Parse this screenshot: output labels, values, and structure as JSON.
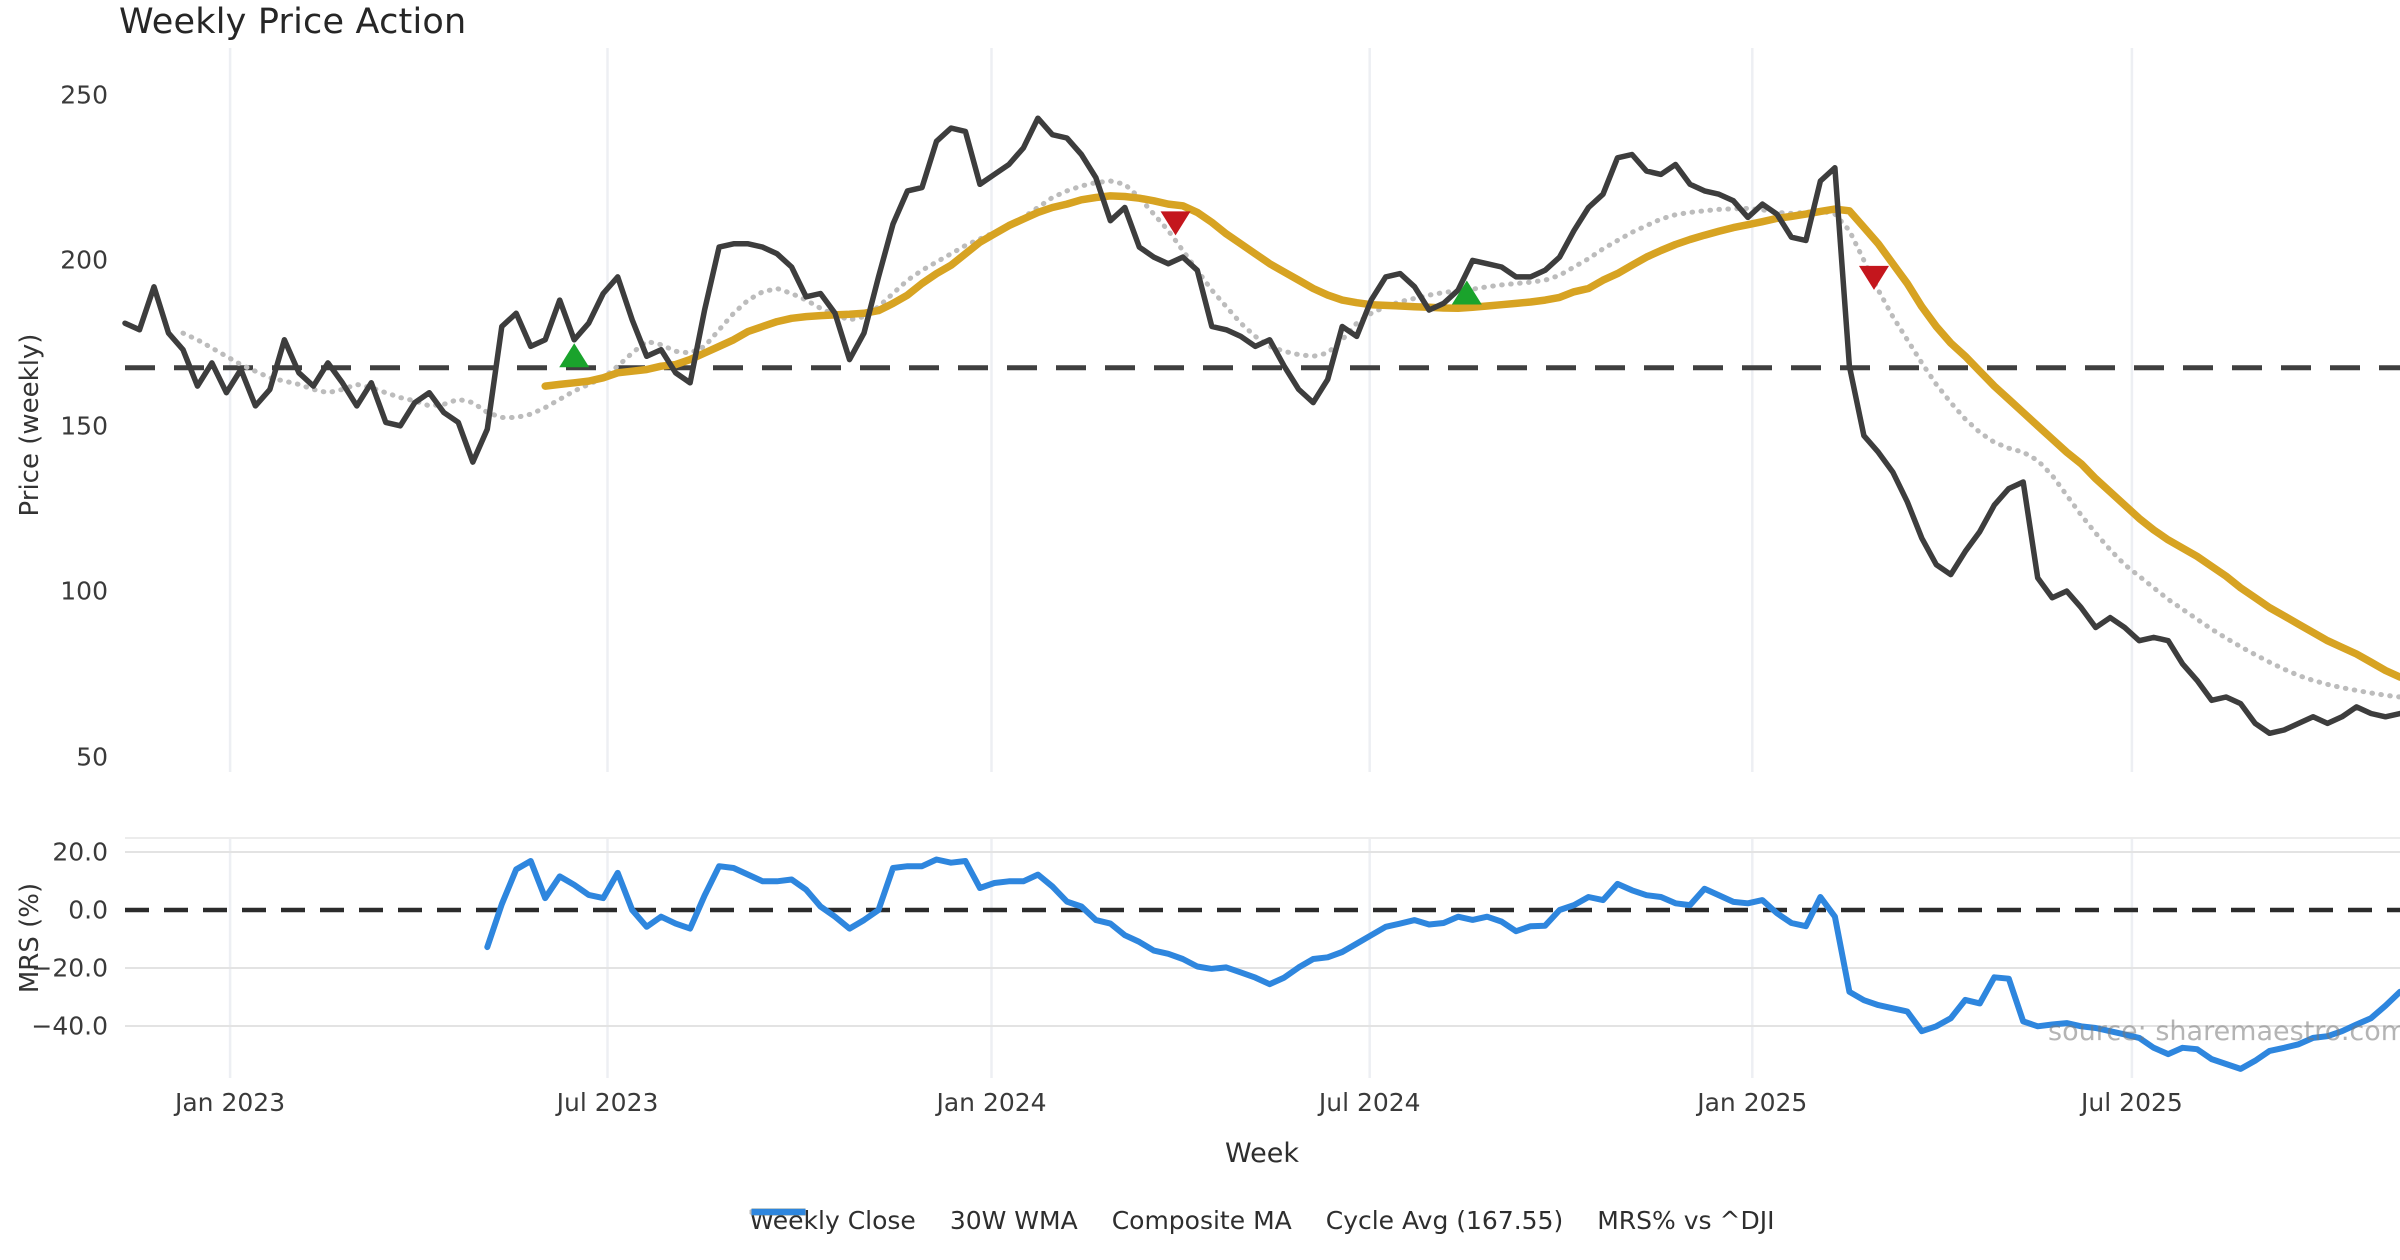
{
  "title": "Weekly Price Action",
  "xlabel": "Week",
  "watermark": "source: sharemaestro.com",
  "colors": {
    "weekly_close": "#3d3d3d",
    "wma_30w": "#d7a322",
    "composite_ma": "#bcbcbc",
    "cycle_avg": "#3f3f3f",
    "mrs": "#2e86de",
    "buy_marker": "#1aa32c",
    "sell_marker": "#c4161d",
    "gridline_vertical": "#edeff3",
    "gridline_horizontal": "#e3e3e3",
    "background": "#ffffff"
  },
  "legend": [
    {
      "label": "Weekly Close",
      "style": "solid",
      "color": "#3d3d3d"
    },
    {
      "label": "30W WMA",
      "style": "solid",
      "color": "#d7a322"
    },
    {
      "label": "Composite MA",
      "style": "dotted",
      "color": "#bcbcbc"
    },
    {
      "label": "Cycle Avg (167.55)",
      "style": "dashed",
      "color": "#3f3f3f"
    },
    {
      "label": "MRS% vs ^DJI",
      "style": "solid",
      "color": "#2e86de"
    }
  ],
  "chart_data": [
    {
      "type": "line",
      "panel": "price",
      "title": "Weekly Price Action",
      "ylabel": "Price (weekly)",
      "yticks": [
        "250",
        "200",
        "150",
        "100",
        "50"
      ],
      "ytick_values": [
        250,
        200,
        150,
        100,
        50
      ],
      "ylim": [
        46,
        264
      ],
      "x_unit": "weekly index, mid-Nov 2022 = week 0",
      "xticks": [
        {
          "label": "Jan 2023",
          "week": 7.25
        },
        {
          "label": "Jul 2023",
          "week": 33.3
        },
        {
          "label": "Jan 2024",
          "week": 59.8
        },
        {
          "label": "Jul 2024",
          "week": 85.9
        },
        {
          "label": "Jan 2025",
          "week": 112.3
        },
        {
          "label": "Jul 2025",
          "week": 138.5
        }
      ],
      "grid": "vertical-only",
      "series": [
        {
          "name": "Weekly Close",
          "style": "solid",
          "color": "#3d3d3d",
          "start_week": 0,
          "values": [
            181,
            179,
            192,
            178,
            173,
            162,
            169,
            160,
            167,
            156,
            161,
            176,
            166,
            162,
            169,
            163,
            156,
            163,
            151,
            150,
            157,
            160,
            154,
            151,
            139,
            149,
            180,
            184,
            174,
            176,
            188,
            176,
            181,
            190,
            195,
            182,
            171,
            173,
            166,
            163,
            185,
            204,
            205,
            205,
            204,
            202,
            198,
            189,
            190,
            184,
            170,
            178,
            195,
            211,
            221,
            222,
            236,
            240,
            239,
            223,
            226,
            229,
            234,
            243,
            238,
            237,
            232,
            225,
            212,
            216,
            204,
            201,
            199,
            201,
            197,
            180,
            179,
            177,
            174,
            176,
            168,
            161,
            157,
            164,
            180,
            177,
            188,
            195,
            196,
            192,
            185,
            187,
            191,
            200,
            199,
            198,
            195,
            195,
            197,
            201,
            209,
            216,
            220,
            231,
            232,
            227,
            226,
            229,
            223,
            221,
            220,
            218,
            213,
            217,
            214,
            207,
            206,
            224,
            228,
            168,
            147,
            142,
            136,
            127,
            116,
            108,
            105,
            112,
            118,
            126,
            131,
            133,
            104,
            98,
            100,
            95,
            89,
            92,
            89,
            85,
            86,
            85,
            78,
            73,
            67,
            68,
            66,
            60,
            57,
            58,
            60,
            62,
            60,
            62,
            65,
            63,
            62,
            63
          ]
        },
        {
          "name": "30W WMA",
          "style": "solid",
          "color": "#d7a322",
          "start_week": 29,
          "values": [
            162,
            162.5,
            163,
            163.5,
            164.5,
            166,
            166.5,
            167,
            168,
            168.5,
            170,
            172,
            174,
            176,
            178.5,
            180,
            181.5,
            182.5,
            183,
            183.3,
            183.5,
            183.7,
            184,
            184.8,
            187,
            189.5,
            193,
            196,
            198.5,
            202,
            205.5,
            208,
            210.5,
            212.5,
            214.5,
            216,
            217,
            218.3,
            219,
            219.5,
            219.3,
            218.8,
            218,
            217,
            216.5,
            214.5,
            211.5,
            208,
            205,
            202,
            199,
            196.5,
            194,
            191.5,
            189.5,
            188,
            187.2,
            186.6,
            186.4,
            186.2,
            186,
            185.8,
            185.6,
            185.5,
            185.8,
            186.2,
            186.6,
            187,
            187.4,
            188,
            188.8,
            190.5,
            191.5,
            194,
            196,
            198.5,
            201,
            203,
            204.8,
            206.3,
            207.6,
            208.8,
            209.9,
            210.8,
            211.7,
            212.7,
            213.3,
            214,
            214.8,
            215.5,
            215,
            210,
            205,
            199,
            193,
            186,
            180,
            175,
            171,
            166.5,
            162,
            158,
            154,
            150,
            146,
            142,
            138.5,
            134,
            130,
            126,
            122,
            118.5,
            115.5,
            113,
            110.5,
            107.5,
            104.5,
            101,
            98,
            95,
            92.5,
            90,
            87.5,
            85,
            83,
            81,
            78.5,
            76,
            74
          ]
        },
        {
          "name": "Composite MA",
          "style": "dotted",
          "color": "#bcbcbc",
          "start_week": 4,
          "values": [
            178,
            176,
            173.5,
            171,
            168.5,
            166.5,
            164.5,
            163.5,
            162.5,
            161,
            160,
            161,
            162.5,
            161.5,
            160,
            158.5,
            157.5,
            156,
            156.5,
            158,
            157,
            154,
            152.5,
            152.5,
            153.5,
            155.5,
            158,
            160.5,
            162.5,
            164.5,
            168,
            172,
            175.5,
            174.5,
            172.5,
            172,
            174,
            179,
            184,
            188,
            190.5,
            191.5,
            190,
            188,
            185.5,
            183.5,
            182,
            183,
            186,
            190,
            194,
            197,
            199.5,
            202,
            204.5,
            206.5,
            208.5,
            210.5,
            213,
            216,
            219,
            221,
            222.5,
            223.5,
            224,
            223,
            219,
            214,
            209,
            203,
            197,
            191,
            186,
            181,
            177,
            174,
            172.5,
            171.5,
            171,
            172,
            176,
            181,
            184,
            186,
            187.5,
            188.5,
            189.5,
            190.3,
            190.8,
            191.3,
            192,
            192.6,
            193,
            193.4,
            194,
            195.5,
            198,
            200.5,
            203.5,
            206,
            208.5,
            210.5,
            212.5,
            213.8,
            214.5,
            215,
            215.4,
            215.6,
            215.7,
            215.3,
            214.5,
            214.2,
            214.5,
            215,
            214,
            209,
            200,
            191,
            183,
            176,
            169,
            162.5,
            157,
            152,
            148,
            145,
            143.2,
            142,
            139.5,
            135,
            129,
            123,
            117.5,
            112.5,
            108,
            104.5,
            101,
            97.5,
            94.5,
            91.5,
            88.5,
            85.8,
            83.2,
            80.8,
            78.5,
            76.4,
            74.5,
            73,
            71.8,
            70.8,
            70,
            69.2,
            68.5,
            68
          ]
        },
        {
          "name": "Cycle Avg",
          "style": "dashed",
          "color": "#3f3f3f",
          "value": 167.55
        }
      ],
      "markers": [
        {
          "week": 31,
          "price": 171,
          "dir": "up",
          "color": "#1aa32c"
        },
        {
          "week": 72.5,
          "price": 211.5,
          "dir": "down",
          "color": "#c4161d"
        },
        {
          "week": 92.6,
          "price": 190,
          "dir": "up",
          "color": "#1aa32c"
        },
        {
          "week": 120.7,
          "price": 195,
          "dir": "down",
          "color": "#c4161d"
        }
      ]
    },
    {
      "type": "line",
      "panel": "mrs",
      "ylabel": "MRS (%)",
      "yticks": [
        "20.0",
        "0.0",
        "−20.0",
        "−40.0"
      ],
      "ytick_values": [
        20,
        0,
        -20,
        -40
      ],
      "ylim": [
        -58,
        25
      ],
      "grid": "horizontal-and-vertical",
      "series": [
        {
          "name": "MRS% vs ^DJI",
          "style": "solid",
          "color": "#2e86de",
          "start_week": 25,
          "values": [
            -12.8,
            2,
            14,
            16.9,
            4.1,
            11.6,
            8.7,
            5.2,
            4.1,
            12.8,
            0,
            -5.8,
            -2.3,
            -4.7,
            -6.4,
            5,
            15.1,
            14.5,
            12.2,
            9.9,
            9.9,
            10.5,
            7,
            1.2,
            -2.3,
            -6.4,
            -3.5,
            0,
            14.5,
            15.1,
            15.1,
            17.4,
            16.3,
            16.9,
            7.6,
            9.3,
            9.9,
            9.9,
            12.2,
            8.1,
            2.9,
            1.2,
            -3.5,
            -4.7,
            -8.7,
            -11,
            -14,
            -15.1,
            -16.9,
            -19.5,
            -20.3,
            -19.8,
            -21.5,
            -23.3,
            -25.6,
            -23.3,
            -19.8,
            -16.9,
            -16.3,
            -14.5,
            -11.6,
            -8.7,
            -5.8,
            -4.7,
            -3.5,
            -5,
            -4.5,
            -2.3,
            -3.4,
            -2.3,
            -4,
            -7.3,
            -5.6,
            -5.4,
            0,
            1.7,
            4.5,
            3.4,
            9,
            6.8,
            5.1,
            4.5,
            2.3,
            1.7,
            7.3,
            5.1,
            2.8,
            2.3,
            3.4,
            -1.1,
            -4.5,
            -5.6,
            4.5,
            -2.3,
            -28.2,
            -31.1,
            -32.8,
            -33.9,
            -35,
            -41.8,
            -40.1,
            -37.3,
            -31,
            -32.2,
            -23.2,
            -23.7,
            -38.4,
            -40.1,
            -39.5,
            -39,
            -40.1,
            -40.7,
            -41.8,
            -42.9,
            -44.1,
            -47.5,
            -49.7,
            -47.5,
            -48,
            -51.4,
            -53.1,
            -54.8,
            -52,
            -48.6,
            -47.5,
            -46.3,
            -44.1,
            -43.5,
            -41.8,
            -39.5,
            -37.3,
            -33,
            -28.2
          ]
        },
        {
          "name": "Zero Line",
          "style": "dashed",
          "color": "#2b2b2b",
          "value": 0
        }
      ]
    }
  ]
}
